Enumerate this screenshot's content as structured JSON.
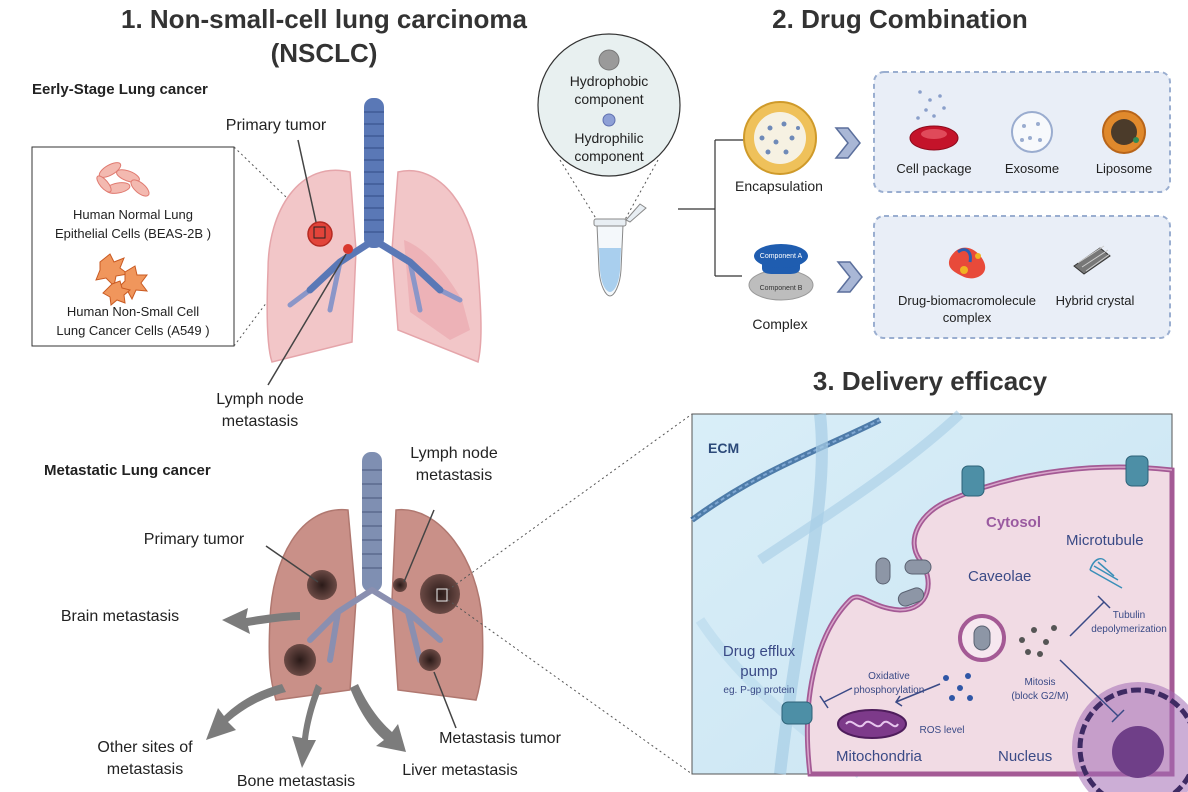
{
  "section1": {
    "title_line1": "1. Non-small-cell lung carcinoma",
    "title_line2": "(NSCLC)",
    "early": {
      "heading": "Eerly-Stage Lung cancer",
      "primary_tumor": "Primary tumor",
      "lymph_line1": "Lymph node",
      "lymph_line2": "metastasis",
      "box": {
        "normal_line1": "Human Normal Lung",
        "normal_line2": "Epithelial Cells (BEAS-2B )",
        "cancer_line1": "Human Non-Small Cell",
        "cancer_line2": "Lung Cancer Cells (A549 )"
      }
    },
    "metastatic": {
      "heading": "Metastatic Lung cancer",
      "lymph_line1": "Lymph node",
      "lymph_line2": "metastasis",
      "primary_tumor": "Primary tumor",
      "brain": "Brain metastasis",
      "other_line1": "Other sites of",
      "other_line2": "metastasis",
      "bone": "Bone metastasis",
      "liver": "Liver metastasis",
      "tumor": "Metastasis tumor"
    }
  },
  "section2": {
    "title": "2. Drug Combination",
    "hydrophobic_line1": "Hydrophobic",
    "hydrophobic_line2": "component",
    "hydrophilic_line1": "Hydrophilic",
    "hydrophilic_line2": "component",
    "encapsulation": "Encapsulation",
    "complex": "Complex",
    "component_a": "Component A",
    "component_b": "Component B",
    "encap_items": [
      "Cell package",
      "Exosome",
      "Liposome"
    ],
    "complex_items": {
      "dbc_line1": "Drug-biomacromolecule",
      "dbc_line2": "complex",
      "hybrid": "Hybrid crystal"
    }
  },
  "section3": {
    "title": "3. Delivery efficacy",
    "ecm": "ECM",
    "cytosol": "Cytosol",
    "microtubule": "Microtubule",
    "caveolae": "Caveolae",
    "tubulin_line1": "Tubulin",
    "tubulin_line2": "depolymerization",
    "efflux_line1": "Drug efflux",
    "efflux_line2": "pump",
    "efflux_line3": "eg. P-gp protein",
    "oxidative_line1": "Oxidative",
    "oxidative_line2": "phosphorylation",
    "mitosis_line1": "Mitosis",
    "mitosis_line2": "(block G2/M)",
    "ros": "ROS level",
    "mitochondria": "Mitochondria",
    "nucleus": "Nucleus"
  }
}
